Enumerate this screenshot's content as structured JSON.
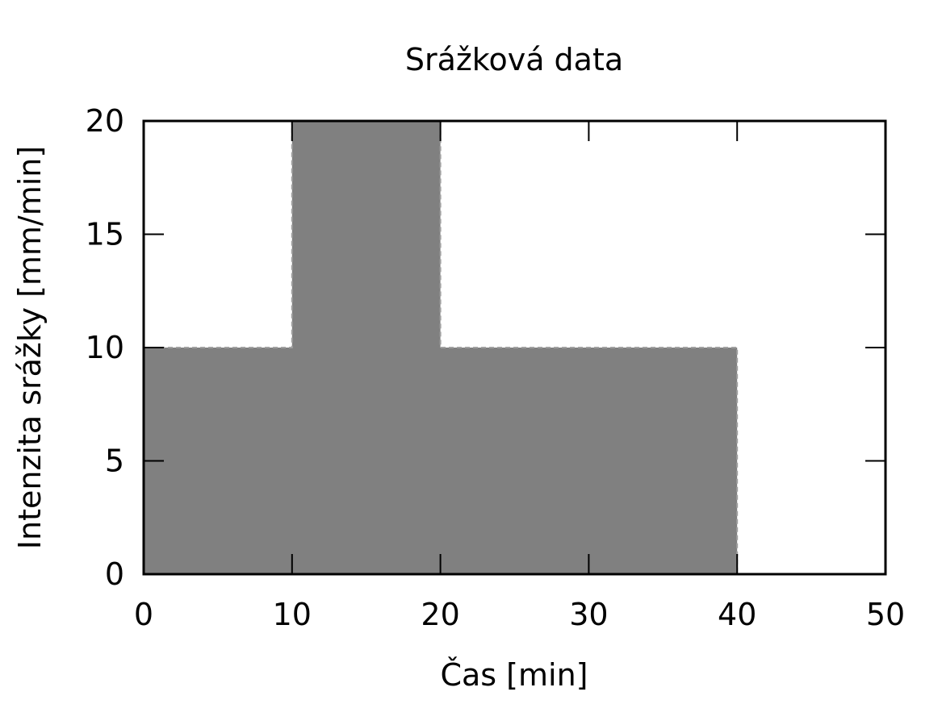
{
  "chart_data": {
    "type": "area",
    "title": "Srážková data",
    "xlabel": "Čas [min]",
    "ylabel": "Intenzita srážky [mm/min]",
    "xlim": [
      0,
      50
    ],
    "ylim": [
      0,
      20
    ],
    "xticks": [
      0,
      10,
      20,
      30,
      40,
      50
    ],
    "yticks": [
      0,
      5,
      10,
      15,
      20
    ],
    "xtick_labels": [
      "0",
      "10",
      "20",
      "30",
      "40",
      "50"
    ],
    "ytick_labels": [
      "0",
      "5",
      "10",
      "15",
      "20"
    ],
    "grid": false,
    "legend": "none",
    "series": [
      {
        "x": [
          0,
          10,
          10,
          20,
          20,
          40,
          40
        ],
        "y": [
          10,
          10,
          20,
          20,
          10,
          10,
          0
        ],
        "fill_color": "#808080",
        "edge_color": "#a0a0a0"
      }
    ]
  }
}
